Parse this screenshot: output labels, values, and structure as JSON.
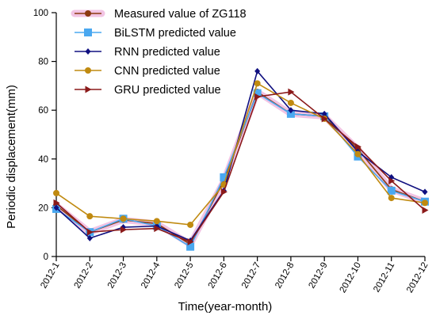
{
  "chart_data": {
    "type": "line",
    "xlabel": "Time(year-month)",
    "ylabel": "Periodic displacement(mm)",
    "ylim": [
      0,
      100
    ],
    "yticks": [
      0,
      20,
      40,
      60,
      80,
      100
    ],
    "grid": false,
    "legend_position": "top-left",
    "categories": [
      "2012-1",
      "2012-2",
      "2012-3",
      "2012-4",
      "2012-5",
      "2012-6",
      "2012-7",
      "2012-8",
      "2012-9",
      "2012-10",
      "2012-11",
      "2012-12"
    ],
    "series": [
      {
        "name": "Measured value of ZG118",
        "color": "#8b3a10",
        "marker": "circle",
        "highlight": "#f2c4e4",
        "values": [
          21.0,
          10.0,
          15.0,
          13.5,
          5.0,
          31.0,
          67.5,
          58.5,
          57.5,
          44.0,
          27.5,
          22.5
        ]
      },
      {
        "name": "BiLSTM predicted value",
        "color": "#4aa8f0",
        "marker": "square",
        "values": [
          19.5,
          10.0,
          15.5,
          12.5,
          4.0,
          32.5,
          67.0,
          58.5,
          57.5,
          41.0,
          27.0,
          22.5
        ]
      },
      {
        "name": "RNN predicted value",
        "color": "#101080",
        "marker": "diamond",
        "values": [
          20.0,
          7.5,
          12.0,
          12.5,
          6.5,
          27.0,
          76.0,
          60.0,
          58.5,
          43.0,
          32.5,
          26.5
        ]
      },
      {
        "name": "CNN predicted value",
        "color": "#c08a10",
        "marker": "circle",
        "values": [
          26.0,
          16.5,
          15.5,
          14.5,
          13.0,
          29.5,
          71.0,
          63.0,
          56.5,
          42.0,
          24.0,
          22.0
        ]
      },
      {
        "name": "GRU predicted value",
        "color": "#8b1a1a",
        "marker": "triangle-right",
        "values": [
          22.0,
          10.0,
          11.0,
          11.5,
          6.0,
          26.5,
          65.5,
          67.5,
          56.5,
          45.0,
          31.0,
          19.0
        ]
      }
    ]
  }
}
